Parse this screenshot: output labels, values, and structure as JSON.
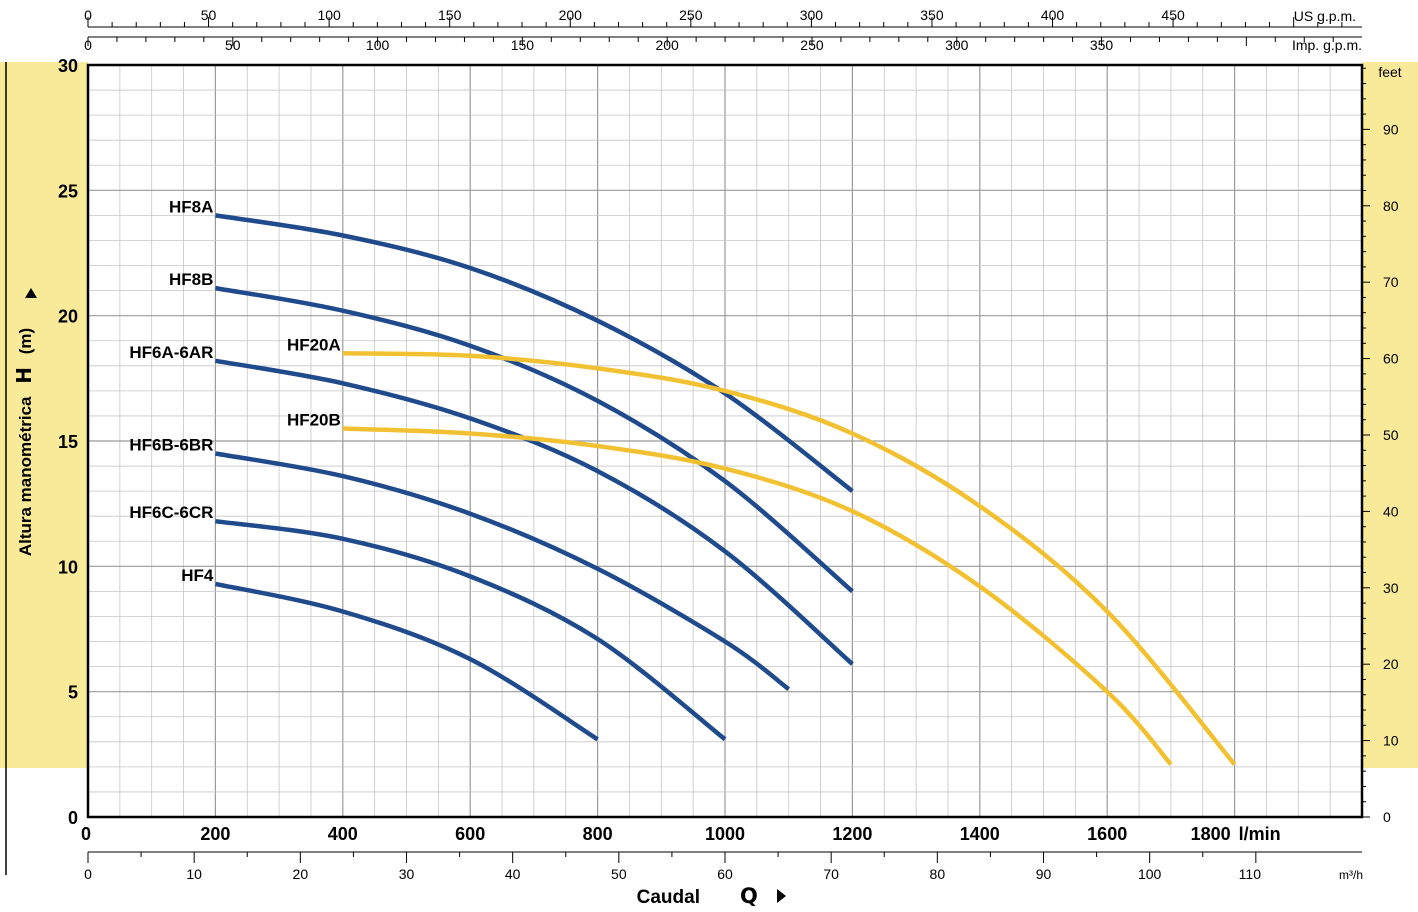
{
  "chart_data": {
    "type": "line",
    "xlabel": "Caudal",
    "xlabel_symbol": "Q",
    "ylabel": "Altura manométrica",
    "ylabel_symbol": "H",
    "ylabel_unit": "(m)",
    "x_unit": "l/min",
    "xlim": [
      0,
      2000
    ],
    "ylim": [
      0,
      30
    ],
    "x_ticks": [
      0,
      200,
      400,
      600,
      800,
      1000,
      1200,
      1400,
      1600,
      1800
    ],
    "y_ticks": [
      0,
      5,
      10,
      15,
      20,
      25,
      30
    ],
    "grid": true,
    "secondary_axes": {
      "us_gpm": {
        "label": "US g.p.m.",
        "ticks": [
          0,
          50,
          100,
          150,
          200,
          250,
          300,
          350,
          400,
          450
        ]
      },
      "imp_gpm": {
        "label": "Imp. g.p.m.",
        "ticks": [
          0,
          50,
          100,
          150,
          200,
          250,
          300,
          350
        ]
      },
      "m3h": {
        "label": "m³/h",
        "ticks": [
          0,
          10,
          20,
          30,
          40,
          50,
          60,
          70,
          80,
          90,
          100,
          110
        ]
      },
      "feet": {
        "label": "feet",
        "ticks": [
          0,
          10,
          20,
          30,
          40,
          50,
          60,
          70,
          80,
          90
        ]
      }
    },
    "series": [
      {
        "name": "HF8A",
        "color": "#1f4a8c",
        "x": [
          200,
          400,
          600,
          800,
          1000,
          1200
        ],
        "y": [
          24,
          23.2,
          21.9,
          19.8,
          16.9,
          13
        ]
      },
      {
        "name": "HF8B",
        "color": "#1f4a8c",
        "x": [
          200,
          400,
          600,
          800,
          1000,
          1200
        ],
        "y": [
          21.1,
          20.2,
          18.8,
          16.6,
          13.4,
          9
        ]
      },
      {
        "name": "HF6A-6AR",
        "color": "#1f4a8c",
        "x": [
          200,
          400,
          600,
          800,
          1000,
          1200
        ],
        "y": [
          18.2,
          17.3,
          15.9,
          13.8,
          10.6,
          6.1
        ]
      },
      {
        "name": "HF6B-6BR",
        "color": "#1f4a8c",
        "x": [
          200,
          400,
          600,
          800,
          1000,
          1100
        ],
        "y": [
          14.5,
          13.6,
          12.1,
          9.9,
          7,
          5.1
        ]
      },
      {
        "name": "HF6C-6CR",
        "color": "#1f4a8c",
        "x": [
          200,
          400,
          600,
          800,
          1000
        ],
        "y": [
          11.8,
          11.1,
          9.6,
          7.1,
          3.1
        ]
      },
      {
        "name": "HF4",
        "color": "#1f4a8c",
        "x": [
          200,
          400,
          600,
          800
        ],
        "y": [
          9.3,
          8.2,
          6.3,
          3.1
        ]
      },
      {
        "name": "HF20A",
        "color": "#f2c132",
        "x": [
          400,
          600,
          800,
          1000,
          1200,
          1400,
          1600,
          1800
        ],
        "y": [
          18.5,
          18.4,
          17.9,
          17,
          15.3,
          12.4,
          8.2,
          2.1
        ]
      },
      {
        "name": "HF20B",
        "color": "#f2c132",
        "x": [
          400,
          600,
          800,
          1000,
          1200,
          1400,
          1600,
          1700
        ],
        "y": [
          15.5,
          15.3,
          14.8,
          13.9,
          12.2,
          9.2,
          5,
          2.1
        ]
      }
    ]
  }
}
